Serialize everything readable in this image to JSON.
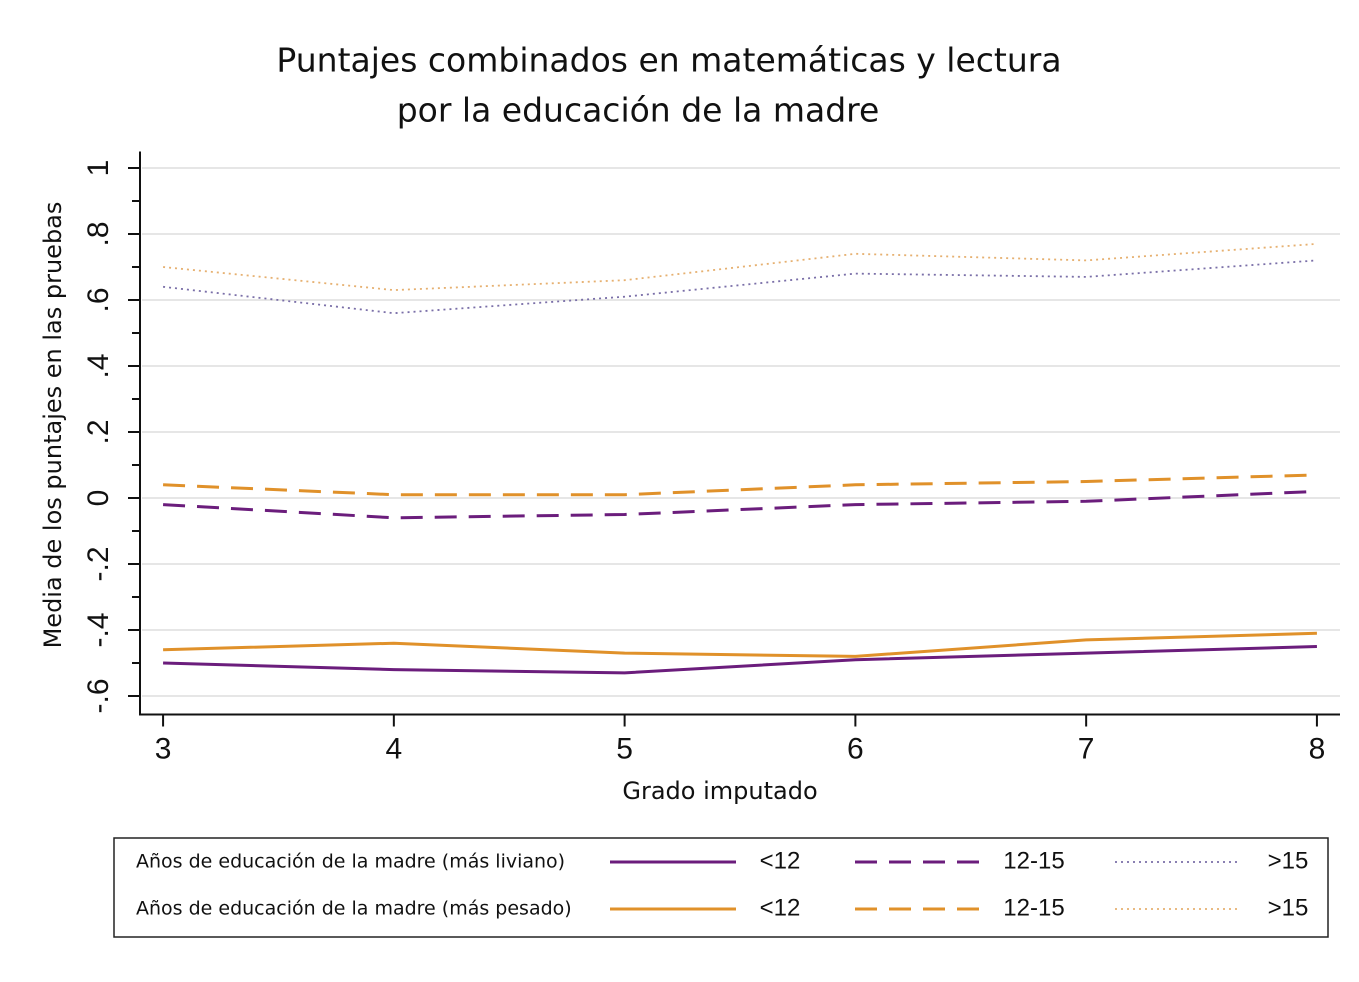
{
  "chart_data": {
    "type": "line",
    "title": [
      "Puntajes combinados en matemáticas y lectura",
      "por la educación de la madre"
    ],
    "x_label": "Grado imputado",
    "y_label": "Media de los puntajes en las pruebas",
    "x": [
      3,
      4,
      5,
      6,
      7,
      8
    ],
    "xlim": [
      2.9,
      8.1
    ],
    "xticks": [
      3,
      4,
      5,
      6,
      7,
      8
    ],
    "ylim": [
      -0.65,
      1.05
    ],
    "yticks": [
      {
        "value": -0.6,
        "label": "-.6"
      },
      {
        "value": -0.4,
        "label": "-.4"
      },
      {
        "value": -0.2,
        "label": "-.2"
      },
      0,
      {
        "value": 0.2,
        "label": ".2"
      },
      {
        "value": 0.4,
        "label": ".4"
      },
      {
        "value": 0.6,
        "label": ".6"
      },
      {
        "value": 0.8,
        "label": ".8"
      },
      1
    ],
    "yminorticks": [
      -0.5,
      -0.3,
      -0.1,
      0.1,
      0.3,
      0.5,
      0.7,
      0.9
    ],
    "grid": true,
    "groups": [
      {
        "name": "Años de educación de la madre (más liviano)",
        "series": [
          {
            "name": "<12",
            "color": "#6b1d7c",
            "dash": "solid",
            "values": [
              -0.5,
              -0.52,
              -0.53,
              -0.49,
              -0.47,
              -0.45
            ]
          },
          {
            "name": "12-15",
            "color": "#6b1d7c",
            "dash": "dashed",
            "values": [
              -0.02,
              -0.06,
              -0.05,
              -0.02,
              -0.01,
              0.02
            ]
          },
          {
            "name": ">15",
            "color": "#7a6fa8",
            "dash": "dotted",
            "values": [
              0.64,
              0.56,
              0.61,
              0.68,
              0.67,
              0.72
            ]
          }
        ]
      },
      {
        "name": "Años de educación de la madre (más pesado)",
        "series": [
          {
            "name": "<12",
            "color": "#e0912a",
            "dash": "solid",
            "values": [
              -0.46,
              -0.44,
              -0.47,
              -0.48,
              -0.43,
              -0.41
            ]
          },
          {
            "name": "12-15",
            "color": "#e0912a",
            "dash": "dashed",
            "values": [
              0.04,
              0.01,
              0.01,
              0.04,
              0.05,
              0.07
            ]
          },
          {
            "name": ">15",
            "color": "#e6b070",
            "dash": "dotted",
            "values": [
              0.7,
              0.63,
              0.66,
              0.74,
              0.72,
              0.77
            ]
          }
        ]
      }
    ]
  }
}
